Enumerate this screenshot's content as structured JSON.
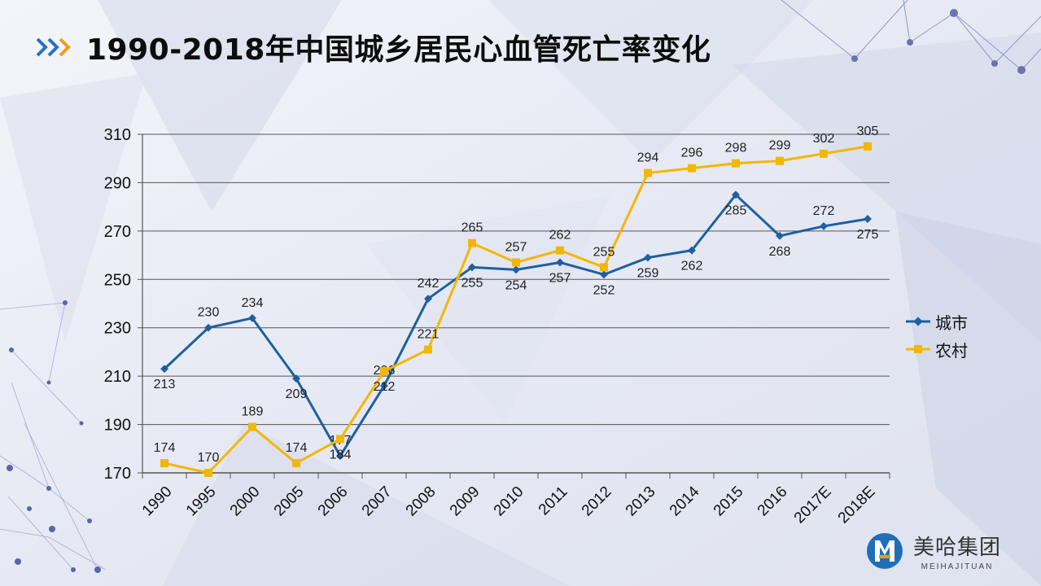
{
  "page": {
    "title": "1990-2018年中国城乡居民心血管死亡率变化",
    "brand_name": "美哈集团",
    "brand_sub": "MEIHAJITUAN"
  },
  "colors": {
    "urban": "#1f5fa0",
    "rural": "#f2b705",
    "chevron_blue": "#2a6fc0",
    "chevron_orange": "#f29b1c",
    "grid": "#555555"
  },
  "chart_data": {
    "type": "line",
    "title": "1990-2018年中国城乡居民心血管死亡率变化",
    "xlabel": "",
    "ylabel": "",
    "ylim": [
      170,
      310
    ],
    "yticks": [
      170,
      190,
      210,
      230,
      250,
      270,
      290,
      310
    ],
    "grid": true,
    "legend_position": "right",
    "categories": [
      "1990",
      "1995",
      "2000",
      "2005",
      "2006",
      "2007",
      "2008",
      "2009",
      "2010",
      "2011",
      "2012",
      "2013",
      "2014",
      "2015",
      "2016",
      "2017E",
      "2018E"
    ],
    "series": [
      {
        "name": "城市",
        "color": "#1f5fa0",
        "marker": "diamond",
        "values": [
          213,
          230,
          234,
          209,
          177,
          206,
          242,
          255,
          254,
          257,
          252,
          259,
          262,
          285,
          268,
          272,
          275
        ]
      },
      {
        "name": "农村",
        "color": "#f2b705",
        "marker": "square",
        "values": [
          174,
          170,
          189,
          174,
          184,
          212,
          221,
          265,
          257,
          262,
          255,
          294,
          296,
          298,
          299,
          302,
          305
        ]
      }
    ]
  }
}
